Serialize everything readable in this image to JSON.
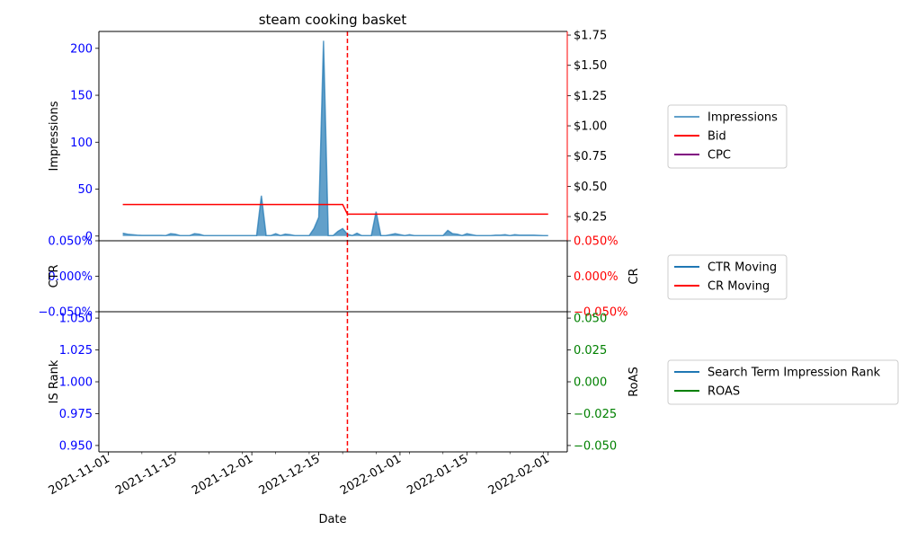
{
  "colors": {
    "impressions": "#1f77b4",
    "bid": "#ff0000",
    "cpc": "#800080",
    "ctr": "#1f77b4",
    "cr": "#ff0000",
    "is_rank": "#1f77b4",
    "roas": "#008000",
    "left_axis_text": "#0000ff",
    "cr_axis_text": "#ff0000",
    "roas_axis_text": "#008000",
    "vline": "#ff0000"
  },
  "chart_data": [
    {
      "type": "area",
      "title": "steam cooking basket",
      "xlim": [
        "2021-10-30",
        "2022-02-05"
      ],
      "x_ticks": [
        "2021-11-01",
        "2021-11-15",
        "2021-12-01",
        "2021-12-15",
        "2022-01-01",
        "2022-01-15",
        "2022-02-01"
      ],
      "vline_date": "2021-12-21",
      "ylabel_left": "Impressions",
      "ylim_left": [
        -5,
        218
      ],
      "yticks_left": [
        "0",
        "50",
        "100",
        "150",
        "200"
      ],
      "ylim_right": [
        0.05,
        1.78
      ],
      "yticks_right": [
        "$0.25",
        "$0.50",
        "$0.75",
        "$1.00",
        "$1.25",
        "$1.50",
        "$1.75"
      ],
      "legend": {
        "position": "right",
        "entries": [
          "Impressions",
          "Bid",
          "CPC"
        ]
      },
      "series": [
        {
          "name": "Impressions",
          "axis": "left",
          "points": [
            [
              "2021-11-04",
              3
            ],
            [
              "2021-11-05",
              2
            ],
            [
              "2021-11-06",
              1.5
            ],
            [
              "2021-11-07",
              1
            ],
            [
              "2021-11-08",
              0.8
            ],
            [
              "2021-11-09",
              0.8
            ],
            [
              "2021-11-10",
              0.8
            ],
            [
              "2021-11-11",
              0.8
            ],
            [
              "2021-11-12",
              0.8
            ],
            [
              "2021-11-13",
              0.5
            ],
            [
              "2021-11-14",
              2.5
            ],
            [
              "2021-11-15",
              2
            ],
            [
              "2021-11-16",
              0.5
            ],
            [
              "2021-11-17",
              0.5
            ],
            [
              "2021-11-18",
              0.5
            ],
            [
              "2021-11-19",
              2.5
            ],
            [
              "2021-11-20",
              2
            ],
            [
              "2021-11-21",
              0.5
            ],
            [
              "2021-11-22",
              0.5
            ],
            [
              "2021-11-23",
              0.5
            ],
            [
              "2021-11-24",
              0.5
            ],
            [
              "2021-11-25",
              0.5
            ],
            [
              "2021-11-26",
              0.5
            ],
            [
              "2021-11-27",
              0.5
            ],
            [
              "2021-11-28",
              0.5
            ],
            [
              "2021-11-29",
              0.5
            ],
            [
              "2021-11-30",
              0.5
            ],
            [
              "2021-12-01",
              0.5
            ],
            [
              "2021-12-02",
              0.5
            ],
            [
              "2021-12-03",
              43
            ],
            [
              "2021-12-04",
              0.5
            ],
            [
              "2021-12-05",
              0.5
            ],
            [
              "2021-12-06",
              2.5
            ],
            [
              "2021-12-07",
              0.5
            ],
            [
              "2021-12-08",
              2
            ],
            [
              "2021-12-09",
              1.5
            ],
            [
              "2021-12-10",
              0.5
            ],
            [
              "2021-12-11",
              0.5
            ],
            [
              "2021-12-12",
              0.5
            ],
            [
              "2021-12-13",
              0.5
            ],
            [
              "2021-12-14",
              8
            ],
            [
              "2021-12-15",
              20
            ],
            [
              "2021-12-16",
              208
            ],
            [
              "2021-12-17",
              0.5
            ],
            [
              "2021-12-18",
              0.5
            ],
            [
              "2021-12-19",
              5
            ],
            [
              "2021-12-20",
              8
            ],
            [
              "2021-12-21",
              2
            ],
            [
              "2021-12-22",
              0.5
            ],
            [
              "2021-12-23",
              3
            ],
            [
              "2021-12-24",
              0.5
            ],
            [
              "2021-12-25",
              0.5
            ],
            [
              "2021-12-26",
              0.5
            ],
            [
              "2021-12-27",
              26
            ],
            [
              "2021-12-28",
              0.5
            ],
            [
              "2021-12-29",
              0.5
            ],
            [
              "2021-12-30",
              1.5
            ],
            [
              "2021-12-31",
              2.5
            ],
            [
              "2022-01-01",
              1.5
            ],
            [
              "2022-01-02",
              0.5
            ],
            [
              "2022-01-03",
              1.5
            ],
            [
              "2022-01-04",
              0.5
            ],
            [
              "2022-01-05",
              0.5
            ],
            [
              "2022-01-06",
              0.5
            ],
            [
              "2022-01-07",
              0.5
            ],
            [
              "2022-01-08",
              0.5
            ],
            [
              "2022-01-09",
              0.5
            ],
            [
              "2022-01-10",
              0.5
            ],
            [
              "2022-01-11",
              6
            ],
            [
              "2022-01-12",
              2.5
            ],
            [
              "2022-01-13",
              2
            ],
            [
              "2022-01-14",
              0.5
            ],
            [
              "2022-01-15",
              2.5
            ],
            [
              "2022-01-16",
              1.5
            ],
            [
              "2022-01-17",
              0.5
            ],
            [
              "2022-01-18",
              0.5
            ],
            [
              "2022-01-19",
              0.5
            ],
            [
              "2022-01-20",
              0.5
            ],
            [
              "2022-01-21",
              1
            ],
            [
              "2022-01-22",
              1
            ],
            [
              "2022-01-23",
              1.5
            ],
            [
              "2022-01-24",
              0.5
            ],
            [
              "2022-01-25",
              1.5
            ],
            [
              "2022-01-26",
              1
            ],
            [
              "2022-01-27",
              1
            ],
            [
              "2022-01-28",
              1
            ],
            [
              "2022-01-29",
              1
            ],
            [
              "2022-01-30",
              0.8
            ],
            [
              "2022-01-31",
              0.5
            ],
            [
              "2022-02-01",
              0.5
            ]
          ]
        },
        {
          "name": "Bid",
          "axis": "right",
          "points": [
            [
              "2021-11-04",
              0.35
            ],
            [
              "2021-12-20",
              0.35
            ],
            [
              "2021-12-21",
              0.27
            ],
            [
              "2022-02-01",
              0.27
            ]
          ]
        },
        {
          "name": "CPC",
          "axis": "right",
          "points": []
        }
      ]
    },
    {
      "type": "line",
      "ylabel_left": "CTR",
      "ylabel_right": "CR",
      "ylim_left": [
        -0.05,
        0.05
      ],
      "yticks_left": [
        "−0.050%",
        "0.000%",
        "0.050%"
      ],
      "ylim_right": [
        -0.05,
        0.05
      ],
      "yticks_right": [
        "−0.050%",
        "0.000%",
        "0.050%"
      ],
      "legend": {
        "position": "right",
        "entries": [
          "CTR Moving",
          "CR Moving"
        ]
      },
      "series": [
        {
          "name": "CTR Moving",
          "points": []
        },
        {
          "name": "CR Moving",
          "points": []
        }
      ]
    },
    {
      "type": "line",
      "ylabel_left": "IS Rank",
      "ylabel_right": "RoAS",
      "xlabel": "Date",
      "ylim_left": [
        0.945,
        1.055
      ],
      "yticks_left": [
        "0.950",
        "0.975",
        "1.000",
        "1.025",
        "1.050"
      ],
      "ylim_right": [
        -0.055,
        0.055
      ],
      "yticks_right": [
        "−0.050",
        "−0.025",
        "0.000",
        "0.025",
        "0.050"
      ],
      "legend": {
        "position": "right",
        "entries": [
          "Search Term Impression Rank",
          "ROAS"
        ]
      },
      "series": [
        {
          "name": "Search Term Impression Rank",
          "points": []
        },
        {
          "name": "ROAS",
          "points": []
        }
      ]
    }
  ]
}
